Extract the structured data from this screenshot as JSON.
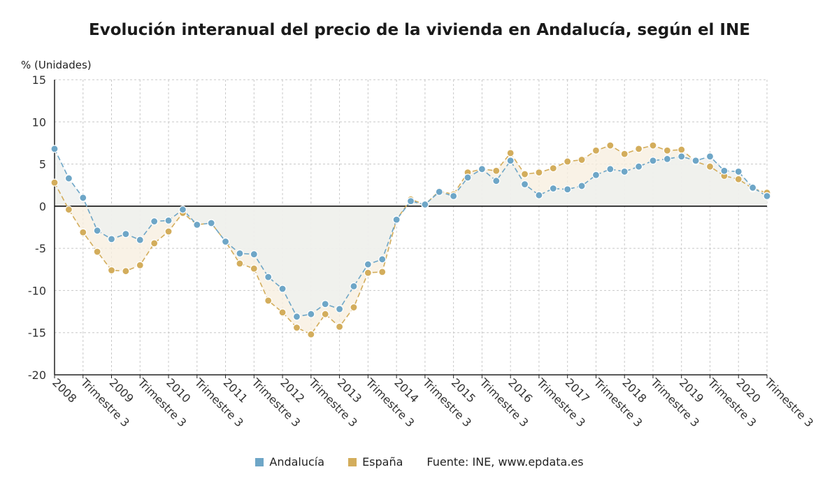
{
  "title": "Evolución interanual del precio de la vivienda en Andalucía, según el INE",
  "unit_label": "% (Unidades)",
  "source": "Fuente: INE, www.epdata.es",
  "colors": {
    "andalucia": "#6ea6c7",
    "espana": "#d3ad5c",
    "andalucia_fill": "#eef0ef",
    "espana_fill": "#f7efe0",
    "grid": "#c8c8c8",
    "axis": "#222222",
    "zero_line": "#111111"
  },
  "chart_data": {
    "type": "line",
    "title": "Evolución interanual del precio de la vivienda en Andalucía, según el INE",
    "ylabel": "% (Unidades)",
    "ylim": [
      -20,
      15
    ],
    "yticks": [
      15,
      10,
      5,
      0,
      -5,
      -10,
      -15,
      -20
    ],
    "grid": true,
    "legend_position": "bottom",
    "x": [
      "2008",
      "",
      "Trimestre 3",
      "",
      "2009",
      "",
      "Trimestre 3",
      "",
      "2010",
      "",
      "Trimestre 3",
      "",
      "2011",
      "",
      "Trimestre 3",
      "",
      "2012",
      "",
      "Trimestre 3",
      "",
      "2013",
      "",
      "Trimestre 3",
      "",
      "2014",
      "",
      "Trimestre 3",
      "",
      "2015",
      "",
      "Trimestre 3",
      "",
      "2016",
      "",
      "Trimestre 3",
      "",
      "2017",
      "",
      "Trimestre 3",
      "",
      "2018",
      "",
      "Trimestre 3",
      "",
      "2019",
      "",
      "Trimestre 3",
      "",
      "2020",
      "",
      "Trimestre 3"
    ],
    "tick_labels": [
      "2008",
      "Trimestre 3",
      "2009",
      "Trimestre 3",
      "2010",
      "Trimestre 3",
      "2011",
      "Trimestre 3",
      "2012",
      "Trimestre 3",
      "2013",
      "Trimestre 3",
      "2014",
      "Trimestre 3",
      "2015",
      "Trimestre 3",
      "2016",
      "Trimestre 3",
      "2017",
      "Trimestre 3",
      "2018",
      "Trimestre 3",
      "2019",
      "Trimestre 3",
      "2020",
      "Trimestre 3"
    ],
    "series": [
      {
        "name": "Andalucía",
        "color": "#6ea6c7",
        "values": [
          6.8,
          3.3,
          1.0,
          -2.9,
          -3.9,
          -3.3,
          -4.0,
          -1.8,
          -1.7,
          -0.4,
          -2.2,
          -2.0,
          -4.2,
          -5.6,
          -5.7,
          -8.4,
          -9.8,
          -13.1,
          -12.8,
          -11.6,
          -12.2,
          -9.5,
          -6.9,
          -6.3,
          -1.6,
          0.6,
          0.2,
          1.7,
          1.2,
          3.4,
          4.4,
          3.0,
          5.4,
          2.6,
          1.3,
          2.1,
          2.0,
          2.4,
          3.7,
          4.4,
          4.1,
          4.7,
          5.4,
          5.6,
          5.9,
          5.4,
          5.9,
          4.2,
          4.1,
          2.2,
          1.2
        ]
      },
      {
        "name": "España",
        "color": "#d3ad5c",
        "values": [
          2.8,
          -0.4,
          -3.1,
          -5.4,
          -7.6,
          -7.7,
          -7.0,
          -4.4,
          -3.0,
          -0.8,
          -2.2,
          -2.0,
          -4.2,
          -6.8,
          -7.4,
          -11.2,
          -12.6,
          -14.4,
          -15.2,
          -12.8,
          -14.3,
          -12.0,
          -7.9,
          -7.8,
          -1.6,
          0.8,
          0.2,
          1.8,
          1.4,
          4.0,
          4.4,
          4.2,
          6.3,
          3.8,
          4.0,
          4.5,
          5.3,
          5.5,
          6.6,
          7.2,
          6.2,
          6.8,
          7.2,
          6.6,
          6.7,
          5.3,
          4.7,
          3.6,
          3.2,
          2.1,
          1.6
        ]
      }
    ]
  }
}
